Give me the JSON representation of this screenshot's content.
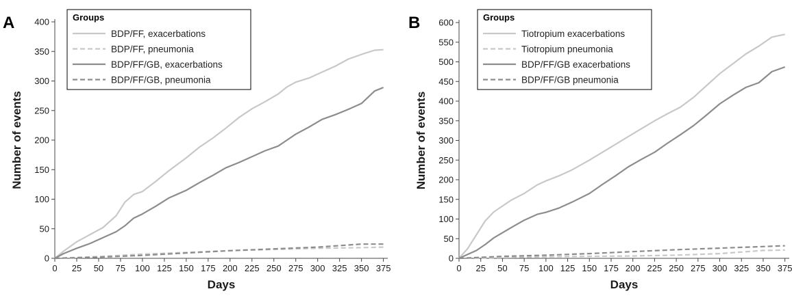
{
  "chart_data": [
    {
      "type": "line",
      "panel_label": "A",
      "xlabel": "Days",
      "ylabel": "Number of events",
      "xlim": [
        0,
        380
      ],
      "ylim": [
        0,
        400
      ],
      "xticks": [
        0,
        25,
        50,
        75,
        100,
        125,
        150,
        175,
        200,
        225,
        250,
        275,
        300,
        325,
        350,
        375
      ],
      "yticks": [
        0,
        50,
        100,
        150,
        200,
        250,
        300,
        350,
        400
      ],
      "grid": false,
      "legend_title": "Groups",
      "legend_position": "top-left",
      "series": [
        {
          "name": "BDP/FF, exacerbations",
          "color": "#c8c8c8",
          "dash": "solid",
          "x": [
            0,
            10,
            25,
            40,
            55,
            70,
            80,
            90,
            100,
            115,
            130,
            150,
            165,
            180,
            195,
            210,
            225,
            240,
            255,
            265,
            275,
            290,
            305,
            320,
            335,
            350,
            365,
            375
          ],
          "y": [
            0,
            12,
            28,
            40,
            52,
            72,
            95,
            108,
            113,
            130,
            148,
            170,
            188,
            203,
            220,
            238,
            253,
            265,
            278,
            290,
            298,
            305,
            315,
            325,
            337,
            345,
            352,
            353
          ]
        },
        {
          "name": "BDP/FF, pneumonia",
          "color": "#c8c8c8",
          "dash": "dashed",
          "x": [
            0,
            50,
            100,
            150,
            200,
            250,
            300,
            350,
            375
          ],
          "y": [
            0,
            3,
            7,
            10,
            13,
            15,
            17,
            18,
            19
          ]
        },
        {
          "name": "BDP/FF/GB, exacerbations",
          "color": "#8c8c8c",
          "dash": "solid",
          "x": [
            0,
            10,
            25,
            40,
            55,
            70,
            80,
            90,
            100,
            115,
            130,
            150,
            165,
            180,
            195,
            210,
            225,
            240,
            255,
            265,
            275,
            290,
            305,
            320,
            335,
            350,
            365,
            375
          ],
          "y": [
            0,
            8,
            17,
            25,
            35,
            45,
            55,
            68,
            75,
            88,
            102,
            115,
            128,
            140,
            153,
            162,
            172,
            182,
            190,
            200,
            210,
            222,
            235,
            243,
            252,
            262,
            283,
            289
          ]
        },
        {
          "name": "BDP/FF/GB, pneumonia",
          "color": "#8c8c8c",
          "dash": "dashed",
          "x": [
            0,
            50,
            100,
            150,
            200,
            250,
            300,
            350,
            375
          ],
          "y": [
            0,
            2,
            5,
            9,
            13,
            16,
            19,
            24,
            24
          ]
        }
      ]
    },
    {
      "type": "line",
      "panel_label": "B",
      "xlabel": "Days",
      "ylabel": "Number of events",
      "xlim": [
        0,
        380
      ],
      "ylim": [
        0,
        600
      ],
      "xticks": [
        0,
        25,
        50,
        75,
        100,
        125,
        150,
        175,
        200,
        225,
        250,
        275,
        300,
        325,
        350,
        375
      ],
      "yticks": [
        0,
        50,
        100,
        150,
        200,
        250,
        300,
        350,
        400,
        450,
        500,
        550,
        600
      ],
      "grid": false,
      "legend_title": "Groups",
      "legend_position": "top-left",
      "series": [
        {
          "name": "Tiotropium exacerbations",
          "color": "#c8c8c8",
          "dash": "solid",
          "x": [
            0,
            10,
            20,
            30,
            40,
            50,
            60,
            75,
            90,
            100,
            115,
            130,
            150,
            165,
            180,
            195,
            210,
            225,
            240,
            255,
            270,
            285,
            300,
            315,
            330,
            345,
            360,
            375
          ],
          "y": [
            0,
            25,
            60,
            95,
            118,
            133,
            148,
            165,
            187,
            197,
            210,
            225,
            250,
            270,
            290,
            310,
            330,
            350,
            368,
            385,
            410,
            440,
            470,
            495,
            520,
            540,
            563,
            570
          ]
        },
        {
          "name": "Tiotropium pneumonia",
          "color": "#c8c8c8",
          "dash": "dashed",
          "x": [
            0,
            50,
            100,
            150,
            200,
            250,
            300,
            350,
            375
          ],
          "y": [
            0,
            2,
            4,
            5,
            6,
            8,
            12,
            20,
            21
          ]
        },
        {
          "name": "BDP/FF/GB exacerbations",
          "color": "#8c8c8c",
          "dash": "solid",
          "x": [
            0,
            10,
            20,
            30,
            40,
            50,
            60,
            75,
            90,
            100,
            115,
            130,
            150,
            165,
            180,
            195,
            210,
            225,
            240,
            255,
            270,
            285,
            300,
            315,
            330,
            345,
            360,
            375
          ],
          "y": [
            0,
            10,
            20,
            35,
            52,
            65,
            78,
            97,
            112,
            117,
            128,
            143,
            165,
            188,
            210,
            233,
            252,
            270,
            293,
            315,
            338,
            365,
            393,
            415,
            435,
            447,
            475,
            487
          ]
        },
        {
          "name": "BDP/FF/GB pneumonia",
          "color": "#8c8c8c",
          "dash": "dashed",
          "x": [
            0,
            50,
            100,
            150,
            200,
            250,
            300,
            350,
            375
          ],
          "y": [
            0,
            5,
            8,
            12,
            17,
            22,
            26,
            30,
            32
          ]
        }
      ]
    }
  ]
}
